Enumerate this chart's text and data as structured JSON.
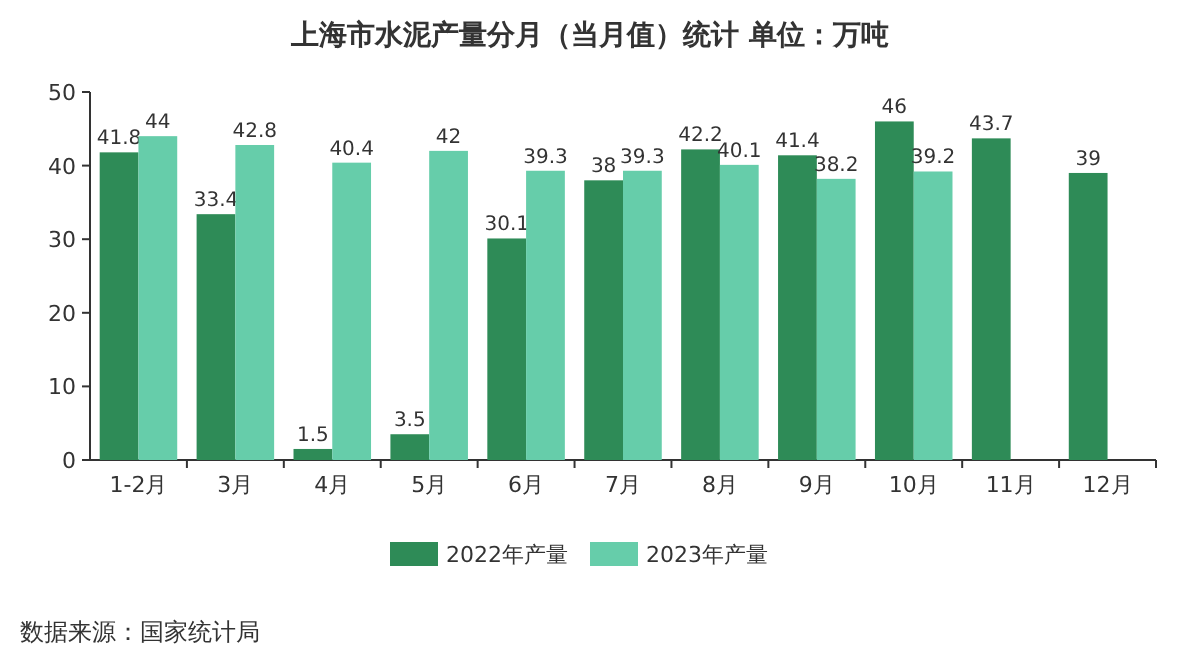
{
  "chart_data": {
    "type": "bar",
    "title": "上海市水泥产量分月（当月值）统计  单位：万吨",
    "categories": [
      "1-2月",
      "3月",
      "4月",
      "5月",
      "6月",
      "7月",
      "8月",
      "9月",
      "10月",
      "11月",
      "12月"
    ],
    "series": [
      {
        "name": "2022年产量",
        "color": "#2e8b57",
        "values": [
          41.8,
          33.4,
          1.5,
          3.5,
          30.1,
          38,
          42.2,
          41.4,
          46,
          43.7,
          39
        ]
      },
      {
        "name": "2023年产量",
        "color": "#66cdaa",
        "values": [
          44,
          42.8,
          40.4,
          42,
          39.3,
          39.3,
          40.1,
          38.2,
          39.2,
          null,
          null
        ]
      }
    ],
    "ylim": [
      0,
      50
    ],
    "yticks": [
      0,
      10,
      20,
      30,
      40,
      50
    ],
    "data_labels": true,
    "legend": "bottom",
    "annotations": [
      "数据来源：国家统计局"
    ]
  }
}
